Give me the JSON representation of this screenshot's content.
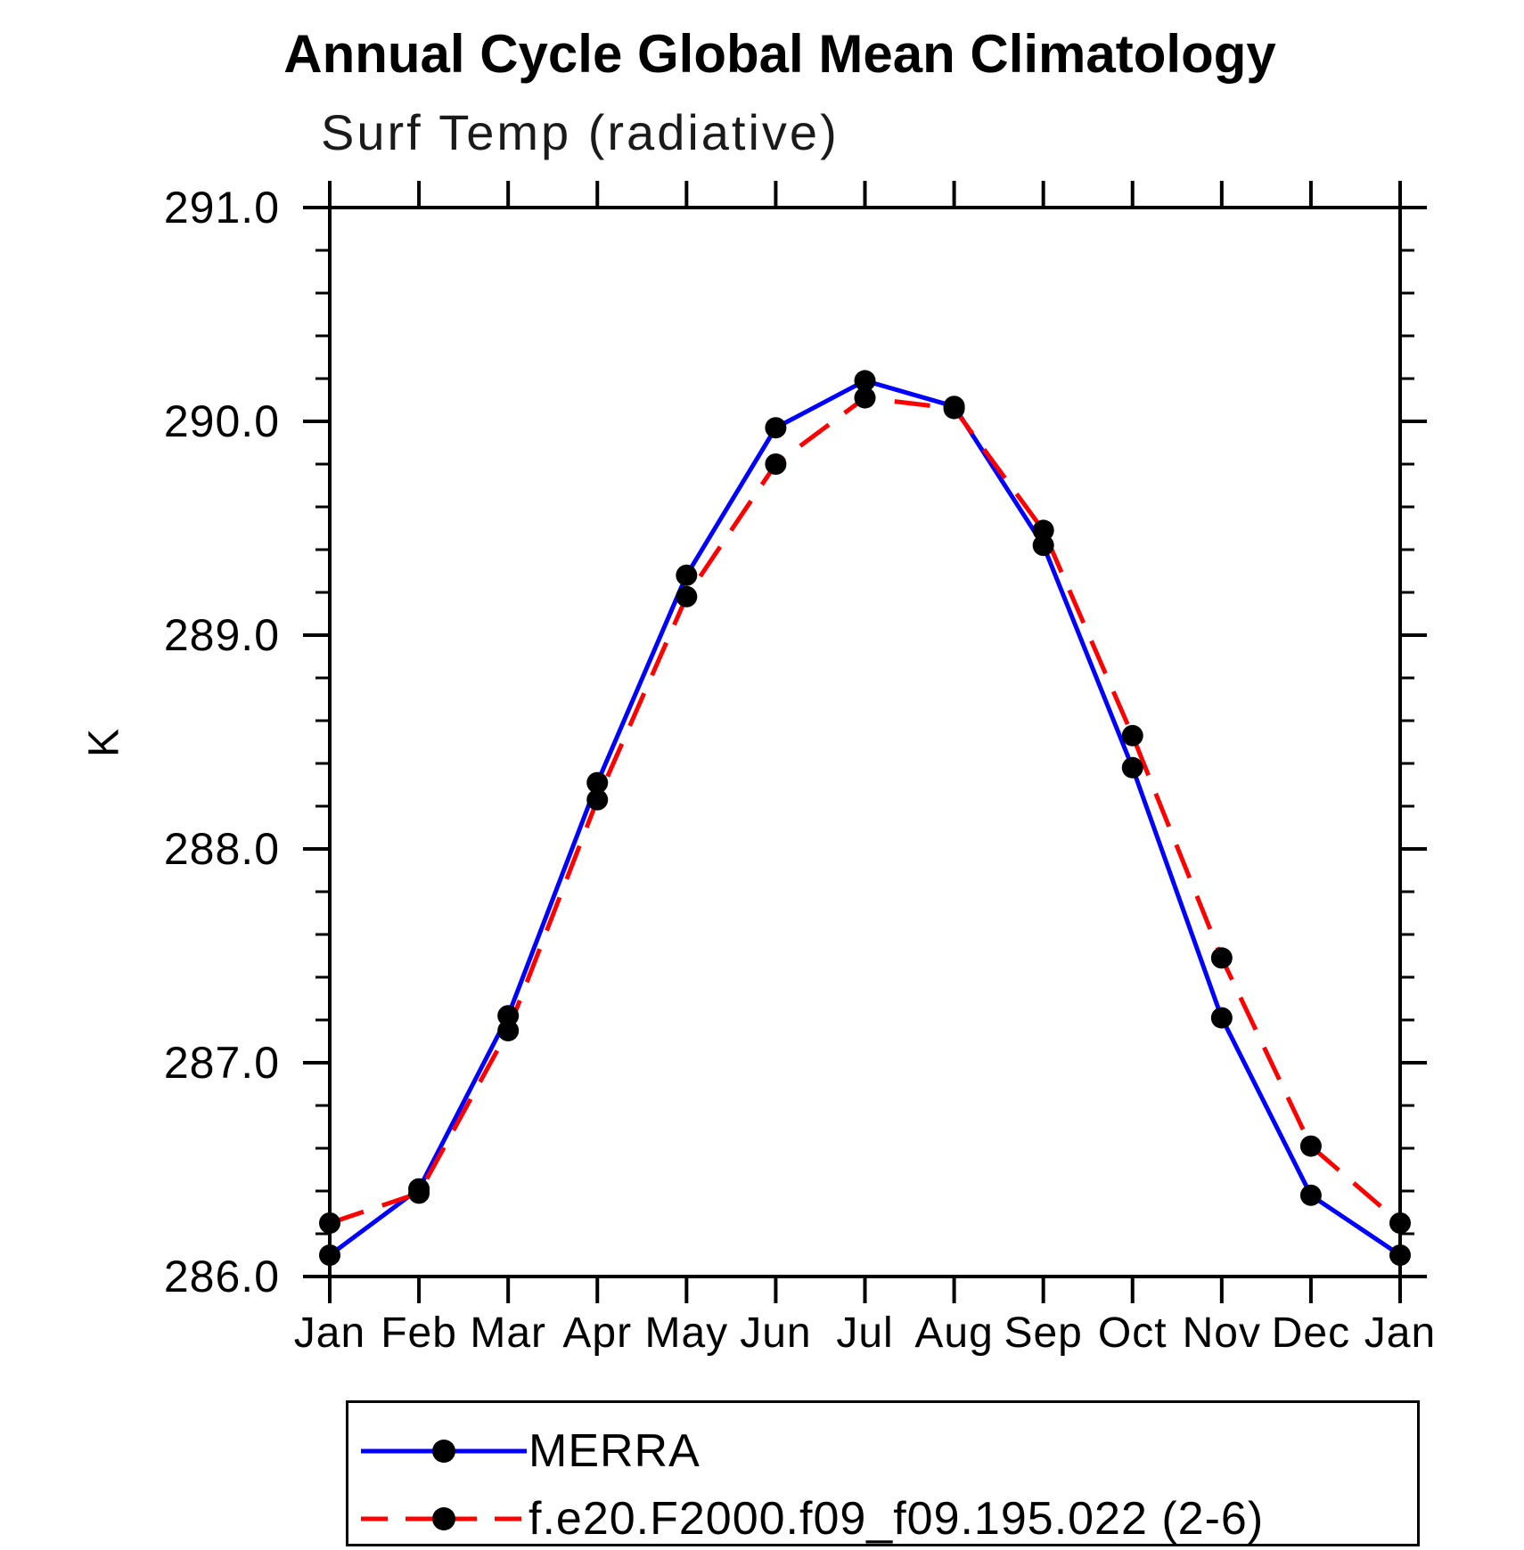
{
  "title": "Annual Cycle Global Mean Climatology",
  "subtitle": "Surf Temp (radiative)",
  "y_axis_label": "K",
  "chart_data": {
    "type": "line",
    "categories": [
      "Jan",
      "Feb",
      "Mar",
      "Apr",
      "May",
      "Jun",
      "Jul",
      "Aug",
      "Sep",
      "Oct",
      "Nov",
      "Dec",
      "Jan"
    ],
    "series": [
      {
        "name": "MERRA",
        "color": "#0000ff",
        "line_style": "solid",
        "marker": "filled-black-circle",
        "values": [
          286.1,
          286.41,
          287.22,
          288.31,
          289.28,
          289.97,
          290.19,
          290.07,
          289.42,
          288.38,
          287.21,
          286.38,
          286.1
        ]
      },
      {
        "name": "f.e20.F2000.f09_f09.195.022 (2-6)",
        "color": "#ff0000",
        "line_style": "dashed",
        "marker": "filled-black-circle",
        "values": [
          286.25,
          286.39,
          287.15,
          288.23,
          289.18,
          289.8,
          290.11,
          290.06,
          289.49,
          288.53,
          287.49,
          286.61,
          286.25
        ]
      }
    ],
    "xlabel": "",
    "ylabel": "K",
    "ylim": [
      286.0,
      291.0
    ],
    "ytick_values": [
      286.0,
      287.0,
      288.0,
      289.0,
      290.0,
      291.0
    ],
    "ytick_labels": [
      "286.0",
      "287.0",
      "288.0",
      "289.0",
      "290.0",
      "291.0"
    ],
    "yminor_step": 0.2,
    "grid": false,
    "legend_position": "box-below-left",
    "marker_color": "#000000",
    "axis_color": "#000000"
  },
  "legend": {
    "items": [
      {
        "label": "MERRA"
      },
      {
        "label": "f.e20.F2000.f09_f09.195.022 (2-6)"
      }
    ]
  }
}
